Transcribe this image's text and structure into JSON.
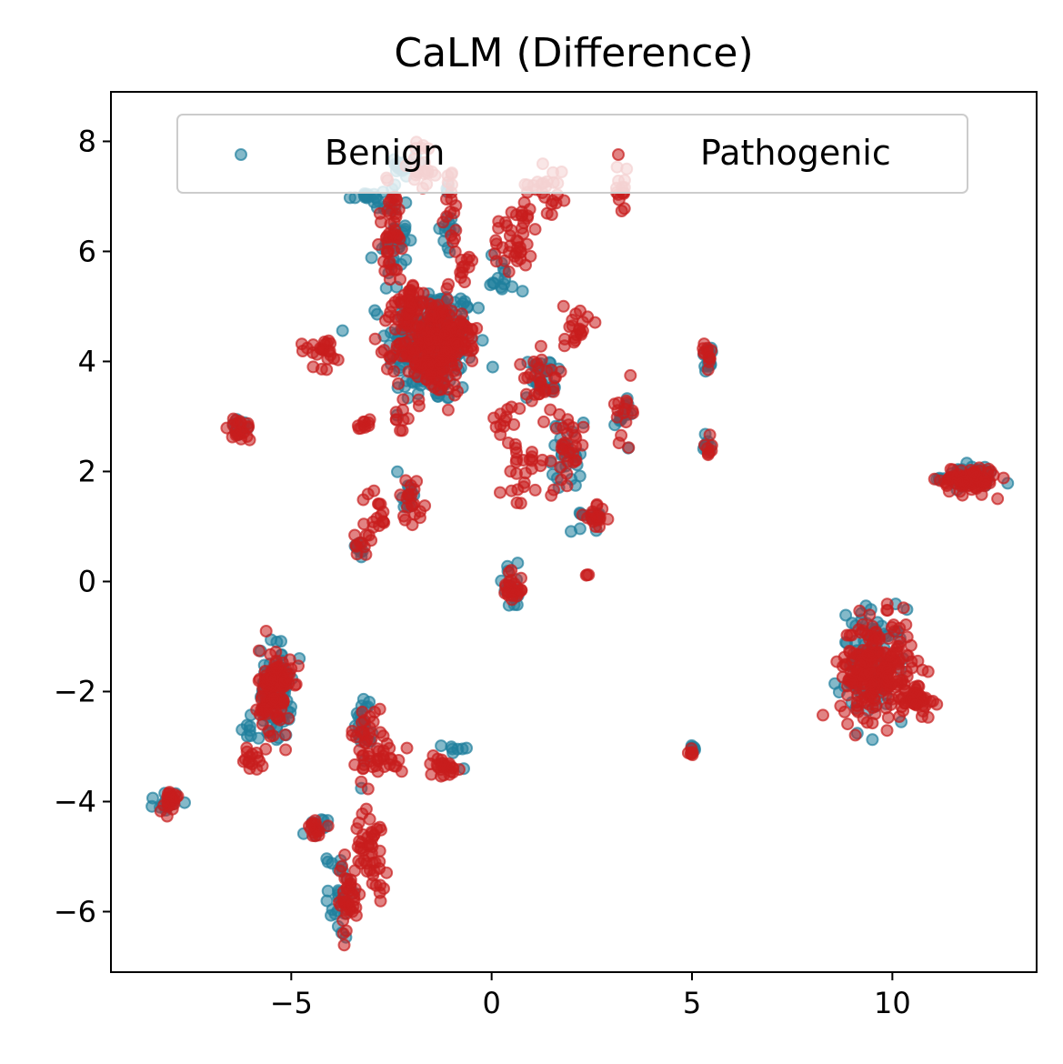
{
  "chart_data": {
    "type": "scatter",
    "title": "CaLM (Difference)",
    "xlabel": "",
    "ylabel": "",
    "xlim": [
      -9.5,
      13.6
    ],
    "ylim": [
      -7.1,
      8.9
    ],
    "xticks": [
      -5,
      0,
      5,
      10
    ],
    "yticks": [
      -6,
      -4,
      -2,
      0,
      2,
      4,
      6,
      8
    ],
    "xtick_labels": [
      "−5",
      "0",
      "5",
      "10"
    ],
    "ytick_labels": [
      "−6",
      "−4",
      "−2",
      "0",
      "2",
      "4",
      "6",
      "8"
    ],
    "grid": false,
    "legend": {
      "position": "top",
      "columns": 2
    },
    "series": [
      {
        "name": "Benign",
        "color": "#1f7f9c",
        "clusters": [
          {
            "cx": -1.5,
            "cy": 4.3,
            "sx": 0.55,
            "sy": 0.55,
            "n": 220
          },
          {
            "cx": -2.5,
            "cy": 6.3,
            "sx": 0.2,
            "sy": 0.5,
            "n": 40
          },
          {
            "cx": -3.1,
            "cy": 7.0,
            "sx": 0.25,
            "sy": 0.08,
            "n": 15
          },
          {
            "cx": -2.0,
            "cy": 7.6,
            "sx": 0.2,
            "sy": 0.15,
            "n": 12
          },
          {
            "cx": -1.1,
            "cy": 6.4,
            "sx": 0.08,
            "sy": 0.4,
            "n": 15
          },
          {
            "cx": 5.4,
            "cy": 4.1,
            "sx": 0.08,
            "sy": 0.12,
            "n": 12
          },
          {
            "cx": 5.4,
            "cy": 2.5,
            "sx": 0.08,
            "sy": 0.12,
            "n": 10
          },
          {
            "cx": 1.9,
            "cy": 2.3,
            "sx": 0.2,
            "sy": 0.3,
            "n": 25
          },
          {
            "cx": 1.2,
            "cy": 3.7,
            "sx": 0.2,
            "sy": 0.2,
            "n": 25
          },
          {
            "cx": 3.3,
            "cy": 3.0,
            "sx": 0.12,
            "sy": 0.2,
            "n": 12
          },
          {
            "cx": 11.9,
            "cy": 1.9,
            "sx": 0.35,
            "sy": 0.1,
            "n": 50
          },
          {
            "cx": 9.5,
            "cy": -1.5,
            "sx": 0.4,
            "sy": 0.5,
            "n": 90
          },
          {
            "cx": -5.4,
            "cy": -2.0,
            "sx": 0.2,
            "sy": 0.45,
            "n": 70
          },
          {
            "cx": -6.0,
            "cy": -2.5,
            "sx": 0.1,
            "sy": 0.2,
            "n": 8
          },
          {
            "cx": -3.2,
            "cy": -2.6,
            "sx": 0.1,
            "sy": 0.3,
            "n": 25
          },
          {
            "cx": -8.1,
            "cy": -4.0,
            "sx": 0.15,
            "sy": 0.1,
            "n": 15
          },
          {
            "cx": -3.8,
            "cy": -5.7,
            "sx": 0.15,
            "sy": 0.4,
            "n": 25
          },
          {
            "cx": -4.4,
            "cy": -4.5,
            "sx": 0.15,
            "sy": 0.1,
            "n": 10
          },
          {
            "cx": 5.0,
            "cy": -3.05,
            "sx": 0.05,
            "sy": 0.05,
            "n": 8
          },
          {
            "cx": -0.9,
            "cy": -3.1,
            "sx": 0.15,
            "sy": 0.1,
            "n": 8
          },
          {
            "cx": -6.3,
            "cy": 2.8,
            "sx": 0.15,
            "sy": 0.1,
            "n": 10
          },
          {
            "cx": -3.3,
            "cy": 0.6,
            "sx": 0.1,
            "sy": 0.1,
            "n": 8
          },
          {
            "cx": -2.1,
            "cy": 1.5,
            "sx": 0.15,
            "sy": 0.15,
            "n": 10
          },
          {
            "cx": 0.5,
            "cy": -0.1,
            "sx": 0.2,
            "sy": 0.2,
            "n": 12
          },
          {
            "cx": 0.2,
            "cy": 5.5,
            "sx": 0.3,
            "sy": 0.25,
            "n": 15
          },
          {
            "cx": 2.4,
            "cy": 1.2,
            "sx": 0.2,
            "sy": 0.15,
            "n": 12
          }
        ]
      },
      {
        "name": "Pathogenic",
        "color": "#c81e1e",
        "clusters": [
          {
            "cx": -1.5,
            "cy": 4.3,
            "sx": 0.45,
            "sy": 0.45,
            "n": 260
          },
          {
            "cx": -2.5,
            "cy": 6.3,
            "sx": 0.2,
            "sy": 0.5,
            "n": 45
          },
          {
            "cx": -1.7,
            "cy": 7.6,
            "sx": 0.18,
            "sy": 0.25,
            "n": 20
          },
          {
            "cx": -1.0,
            "cy": 6.6,
            "sx": 0.08,
            "sy": 0.5,
            "n": 18
          },
          {
            "cx": -0.6,
            "cy": 5.7,
            "sx": 0.12,
            "sy": 0.12,
            "n": 10
          },
          {
            "cx": 0.6,
            "cy": 6.3,
            "sx": 0.3,
            "sy": 0.35,
            "n": 40
          },
          {
            "cx": 1.4,
            "cy": 7.2,
            "sx": 0.25,
            "sy": 0.25,
            "n": 25
          },
          {
            "cx": 3.2,
            "cy": 7.1,
            "sx": 0.12,
            "sy": 0.2,
            "n": 15
          },
          {
            "cx": -4.2,
            "cy": 4.2,
            "sx": 0.3,
            "sy": 0.15,
            "n": 25
          },
          {
            "cx": -3.2,
            "cy": 2.85,
            "sx": 0.08,
            "sy": 0.06,
            "n": 10
          },
          {
            "cx": -2.2,
            "cy": 2.95,
            "sx": 0.1,
            "sy": 0.1,
            "n": 8
          },
          {
            "cx": 2.1,
            "cy": 4.6,
            "sx": 0.15,
            "sy": 0.25,
            "n": 20
          },
          {
            "cx": 1.3,
            "cy": 3.7,
            "sx": 0.25,
            "sy": 0.25,
            "n": 30
          },
          {
            "cx": 3.3,
            "cy": 3.1,
            "sx": 0.15,
            "sy": 0.25,
            "n": 15
          },
          {
            "cx": 1.9,
            "cy": 2.4,
            "sx": 0.2,
            "sy": 0.3,
            "n": 30
          },
          {
            "cx": 0.8,
            "cy": 2.2,
            "sx": 0.3,
            "sy": 0.5,
            "n": 30
          },
          {
            "cx": 2.6,
            "cy": 1.15,
            "sx": 0.15,
            "sy": 0.1,
            "n": 18
          },
          {
            "cx": 5.4,
            "cy": 4.1,
            "sx": 0.08,
            "sy": 0.12,
            "n": 12
          },
          {
            "cx": 5.4,
            "cy": 2.5,
            "sx": 0.08,
            "sy": 0.1,
            "n": 8
          },
          {
            "cx": 11.9,
            "cy": 1.85,
            "sx": 0.35,
            "sy": 0.12,
            "n": 90
          },
          {
            "cx": 9.6,
            "cy": -1.6,
            "sx": 0.45,
            "sy": 0.45,
            "n": 220
          },
          {
            "cx": 10.6,
            "cy": -2.1,
            "sx": 0.2,
            "sy": 0.15,
            "n": 40
          },
          {
            "cx": -6.3,
            "cy": 2.75,
            "sx": 0.15,
            "sy": 0.12,
            "n": 20
          },
          {
            "cx": -2.9,
            "cy": 1.3,
            "sx": 0.15,
            "sy": 0.2,
            "n": 15
          },
          {
            "cx": -3.2,
            "cy": 0.7,
            "sx": 0.12,
            "sy": 0.12,
            "n": 12
          },
          {
            "cx": -2.0,
            "cy": 1.5,
            "sx": 0.15,
            "sy": 0.2,
            "n": 20
          },
          {
            "cx": 0.5,
            "cy": -0.1,
            "sx": 0.15,
            "sy": 0.2,
            "n": 25
          },
          {
            "cx": 2.4,
            "cy": 0.1,
            "sx": 0.02,
            "sy": 0.02,
            "n": 3
          },
          {
            "cx": -5.4,
            "cy": -2.0,
            "sx": 0.2,
            "sy": 0.4,
            "n": 120
          },
          {
            "cx": -6.0,
            "cy": -3.2,
            "sx": 0.12,
            "sy": 0.2,
            "n": 15
          },
          {
            "cx": -3.1,
            "cy": -2.9,
            "sx": 0.2,
            "sy": 0.3,
            "n": 35
          },
          {
            "cx": -2.6,
            "cy": -3.2,
            "sx": 0.2,
            "sy": 0.15,
            "n": 20
          },
          {
            "cx": -1.2,
            "cy": -3.35,
            "sx": 0.2,
            "sy": 0.1,
            "n": 25
          },
          {
            "cx": -8.0,
            "cy": -4.0,
            "sx": 0.15,
            "sy": 0.1,
            "n": 25
          },
          {
            "cx": -4.5,
            "cy": -4.5,
            "sx": 0.15,
            "sy": 0.1,
            "n": 15
          },
          {
            "cx": -3.6,
            "cy": -5.8,
            "sx": 0.15,
            "sy": 0.35,
            "n": 35
          },
          {
            "cx": -3.0,
            "cy": -4.9,
            "sx": 0.2,
            "sy": 0.35,
            "n": 50
          },
          {
            "cx": 5.0,
            "cy": -3.1,
            "sx": 0.04,
            "sy": 0.04,
            "n": 6
          },
          {
            "cx": 0.3,
            "cy": 2.9,
            "sx": 0.15,
            "sy": 0.15,
            "n": 10
          },
          {
            "cx": -0.8,
            "cy": 4.6,
            "sx": 0.2,
            "sy": 0.2,
            "n": 25
          },
          {
            "cx": -2.1,
            "cy": 5.0,
            "sx": 0.25,
            "sy": 0.2,
            "n": 30
          }
        ]
      }
    ]
  }
}
